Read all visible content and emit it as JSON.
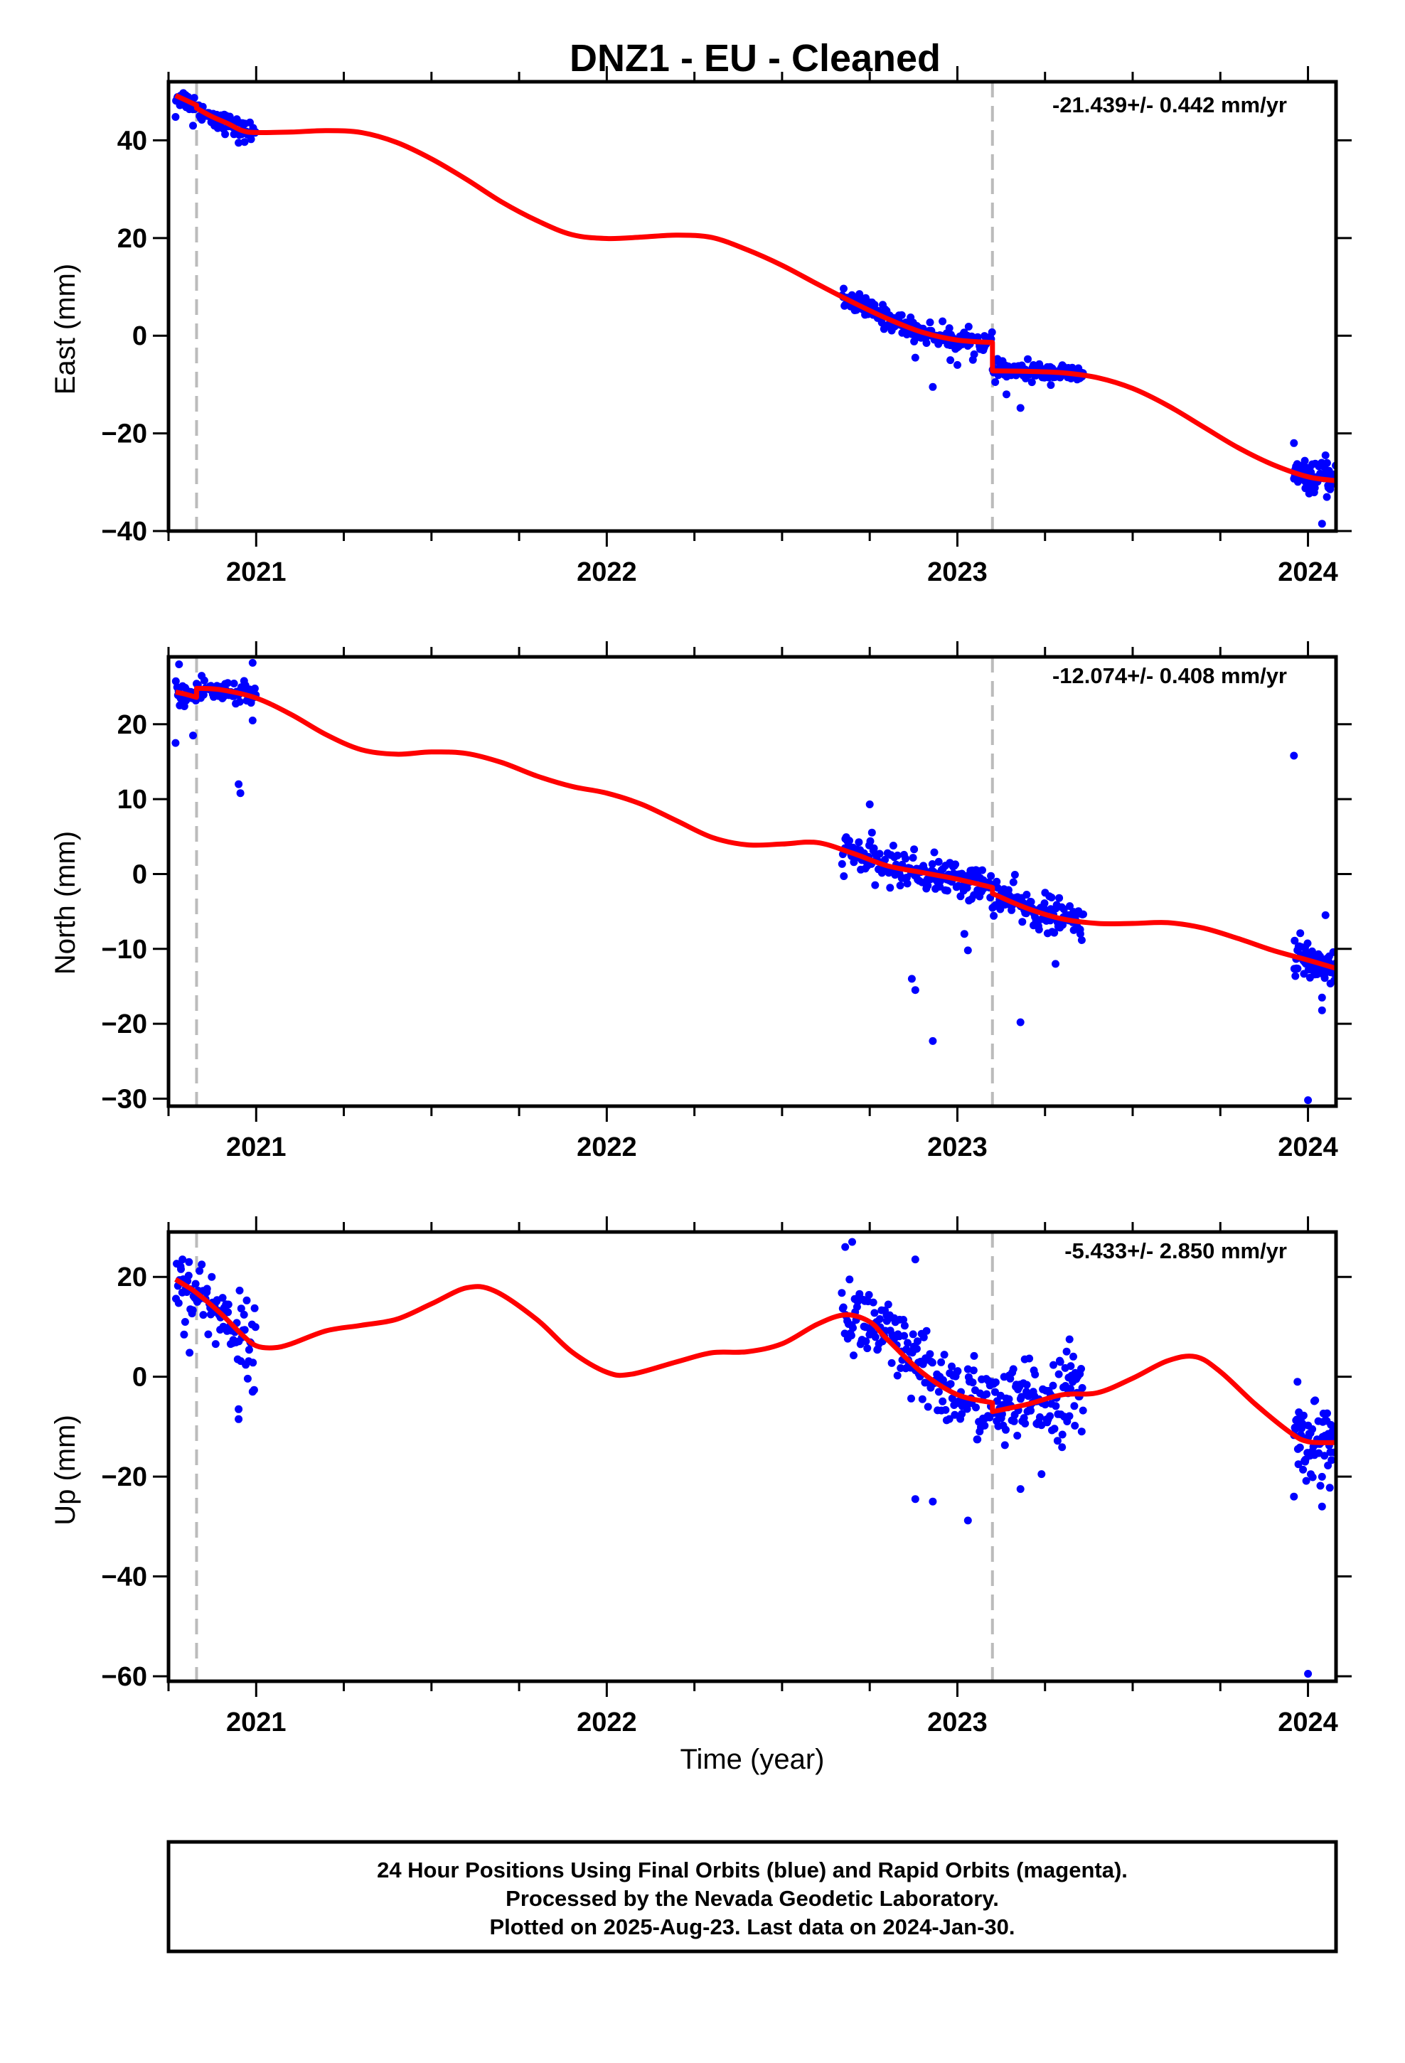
{
  "title": "DNZ1  - EU - Cleaned",
  "xlabel": "Time (year)",
  "footer": {
    "line1": "24 Hour Positions Using Final Orbits (blue) and Rapid Orbits (magenta).",
    "line2": "Processed by the Nevada Geodetic Laboratory.",
    "line3": "Plotted on 2025-Aug-23. Last data on 2024-Jan-30."
  },
  "colors": {
    "points": "#0000ff",
    "fit": "#ff0000",
    "steps": "#bbbbbb",
    "frame": "#000000"
  },
  "chart_data": [
    {
      "type": "scatter",
      "ylabel": "East (mm)",
      "rate_label": "-21.439+/- 0.442 mm/yr",
      "xlim": [
        2020.75,
        2024.08
      ],
      "ylim": [
        -40,
        52
      ],
      "xticks": [
        2021,
        2022,
        2023,
        2024
      ],
      "xtick_labels": [
        "2021",
        "2022",
        "2023",
        "2024"
      ],
      "yticks": [
        -40,
        -20,
        0,
        20,
        40
      ],
      "ytick_labels": [
        "−40",
        "−20",
        "0",
        "20",
        "40"
      ],
      "step_lines": [
        2020.83,
        2023.1
      ],
      "data_segments": [
        {
          "x0": 2020.77,
          "x1": 2021.0,
          "n": 85,
          "noise": 1.0,
          "outliers": [
            [
              2020.77,
              44.8
            ],
            [
              2020.79,
              48.0
            ],
            [
              2020.82,
              43.0
            ],
            [
              2020.95,
              39.5
            ]
          ]
        },
        {
          "x0": 2022.67,
          "x1": 2023.1,
          "n": 170,
          "noise": 1.1,
          "outliers": [
            [
              2022.93,
              -10.5
            ],
            [
              2022.88,
              -4.5
            ],
            [
              2022.98,
              -5.0
            ],
            [
              2023.0,
              -6.0
            ]
          ]
        },
        {
          "x0": 2023.1,
          "x1": 2023.36,
          "n": 110,
          "noise": 0.9,
          "outliers": [
            [
              2023.18,
              -14.8
            ],
            [
              2023.14,
              -12.0
            ]
          ]
        },
        {
          "x0": 2023.96,
          "x1": 2024.08,
          "n": 70,
          "noise": 1.4,
          "outliers": [
            [
              2023.96,
              -22.0
            ],
            [
              2024.04,
              -38.5
            ],
            [
              2024.05,
              -24.5
            ],
            [
              2023.98,
              -27.0
            ]
          ]
        }
      ],
      "fit": [
        [
          2020.77,
          49.2
        ],
        [
          2020.8,
          48.2
        ],
        [
          2020.83,
          47.2
        ],
        [
          2020.83,
          46.6
        ],
        [
          2020.87,
          45.0
        ],
        [
          2020.92,
          43.4
        ],
        [
          2020.96,
          42.0
        ],
        [
          2021.0,
          41.6
        ],
        [
          2021.1,
          41.7
        ],
        [
          2021.2,
          42.0
        ],
        [
          2021.3,
          41.6
        ],
        [
          2021.4,
          39.6
        ],
        [
          2021.5,
          36.2
        ],
        [
          2021.6,
          32.0
        ],
        [
          2021.7,
          27.4
        ],
        [
          2021.8,
          23.6
        ],
        [
          2021.9,
          20.7
        ],
        [
          2022.0,
          19.9
        ],
        [
          2022.1,
          20.2
        ],
        [
          2022.2,
          20.6
        ],
        [
          2022.3,
          20.1
        ],
        [
          2022.4,
          17.6
        ],
        [
          2022.5,
          14.4
        ],
        [
          2022.6,
          10.6
        ],
        [
          2022.7,
          6.9
        ],
        [
          2022.8,
          3.5
        ],
        [
          2022.9,
          0.7
        ],
        [
          2023.0,
          -0.9
        ],
        [
          2023.1,
          -1.4
        ],
        [
          2023.1,
          -7.2
        ],
        [
          2023.2,
          -7.3
        ],
        [
          2023.3,
          -7.6
        ],
        [
          2023.4,
          -8.6
        ],
        [
          2023.5,
          -10.8
        ],
        [
          2023.6,
          -14.3
        ],
        [
          2023.7,
          -18.6
        ],
        [
          2023.8,
          -22.9
        ],
        [
          2023.9,
          -26.4
        ],
        [
          2024.0,
          -28.9
        ],
        [
          2024.08,
          -29.7
        ]
      ]
    },
    {
      "type": "scatter",
      "ylabel": "North (mm)",
      "rate_label": "-12.074+/- 0.408 mm/yr",
      "xlim": [
        2020.75,
        2024.08
      ],
      "ylim": [
        -31,
        29
      ],
      "xticks": [
        2021,
        2022,
        2023,
        2024
      ],
      "xtick_labels": [
        "2021",
        "2022",
        "2023",
        "2024"
      ],
      "yticks": [
        -30,
        -20,
        -10,
        0,
        10,
        20
      ],
      "ytick_labels": [
        "−30",
        "−20",
        "−10",
        "0",
        "10",
        "20"
      ],
      "step_lines": [
        2020.83,
        2023.1
      ],
      "data_segments": [
        {
          "x0": 2020.77,
          "x1": 2021.0,
          "n": 85,
          "noise": 0.9,
          "outliers": [
            [
              2020.77,
              17.5
            ],
            [
              2020.82,
              18.5
            ],
            [
              2020.95,
              12.0
            ],
            [
              2020.955,
              10.8
            ],
            [
              2020.99,
              20.5
            ],
            [
              2020.99,
              28.2
            ],
            [
              2020.78,
              28.0
            ]
          ]
        },
        {
          "x0": 2022.67,
          "x1": 2023.1,
          "n": 170,
          "noise": 1.2,
          "outliers": [
            [
              2022.75,
              9.3
            ],
            [
              2022.87,
              -14.0
            ],
            [
              2022.88,
              -15.5
            ],
            [
              2022.93,
              -22.3
            ],
            [
              2023.03,
              -10.2
            ],
            [
              2023.02,
              -8.0
            ]
          ]
        },
        {
          "x0": 2023.1,
          "x1": 2023.36,
          "n": 110,
          "noise": 1.2,
          "outliers": [
            [
              2023.18,
              -19.8
            ],
            [
              2023.28,
              -12.0
            ]
          ]
        },
        {
          "x0": 2023.96,
          "x1": 2024.08,
          "n": 70,
          "noise": 1.3,
          "outliers": [
            [
              2023.96,
              15.8
            ],
            [
              2024.0,
              -30.2
            ],
            [
              2024.04,
              -18.2
            ],
            [
              2024.04,
              -16.5
            ],
            [
              2024.05,
              -5.5
            ]
          ]
        }
      ],
      "fit": [
        [
          2020.77,
          24.3
        ],
        [
          2020.8,
          24.0
        ],
        [
          2020.83,
          23.6
        ],
        [
          2020.83,
          24.8
        ],
        [
          2020.9,
          24.6
        ],
        [
          2021.0,
          23.5
        ],
        [
          2021.1,
          21.3
        ],
        [
          2021.2,
          18.6
        ],
        [
          2021.3,
          16.6
        ],
        [
          2021.4,
          16.0
        ],
        [
          2021.5,
          16.3
        ],
        [
          2021.6,
          16.1
        ],
        [
          2021.7,
          14.9
        ],
        [
          2021.8,
          13.1
        ],
        [
          2021.9,
          11.7
        ],
        [
          2022.0,
          10.8
        ],
        [
          2022.1,
          9.3
        ],
        [
          2022.2,
          7.1
        ],
        [
          2022.3,
          4.9
        ],
        [
          2022.4,
          3.9
        ],
        [
          2022.5,
          4.0
        ],
        [
          2022.6,
          4.2
        ],
        [
          2022.7,
          2.8
        ],
        [
          2022.8,
          1.1
        ],
        [
          2022.9,
          0.2
        ],
        [
          2023.0,
          -0.7
        ],
        [
          2023.1,
          -1.8
        ],
        [
          2023.1,
          -2.6
        ],
        [
          2023.2,
          -4.6
        ],
        [
          2023.3,
          -6.0
        ],
        [
          2023.4,
          -6.6
        ],
        [
          2023.5,
          -6.6
        ],
        [
          2023.6,
          -6.5
        ],
        [
          2023.7,
          -7.2
        ],
        [
          2023.8,
          -8.6
        ],
        [
          2023.9,
          -10.2
        ],
        [
          2024.0,
          -11.5
        ],
        [
          2024.08,
          -12.6
        ]
      ]
    },
    {
      "type": "scatter",
      "ylabel": "Up (mm)",
      "rate_label": "-5.433+/- 2.850 mm/yr",
      "xlim": [
        2020.75,
        2024.08
      ],
      "ylim": [
        -61,
        29
      ],
      "xticks": [
        2021,
        2022,
        2023,
        2024
      ],
      "xtick_labels": [
        "2021",
        "2022",
        "2023",
        "2024"
      ],
      "yticks": [
        -60,
        -40,
        -20,
        0,
        20
      ],
      "ytick_labels": [
        "−60",
        "−40",
        "−20",
        "0",
        "20"
      ],
      "step_lines": [
        2020.83,
        2023.1
      ],
      "data_segments": [
        {
          "x0": 2020.77,
          "x1": 2021.0,
          "n": 90,
          "noise": 3.5,
          "outliers": [
            [
              2020.81,
              4.8
            ],
            [
              2020.95,
              -8.5
            ],
            [
              2020.95,
              -6.5
            ],
            [
              2020.99,
              -3.0
            ],
            [
              2020.79,
              23.5
            ]
          ]
        },
        {
          "x0": 2022.67,
          "x1": 2023.1,
          "n": 180,
          "noise": 4.0,
          "outliers": [
            [
              2022.68,
              26.0
            ],
            [
              2022.7,
              27.0
            ],
            [
              2022.88,
              23.5
            ],
            [
              2022.88,
              -24.5
            ],
            [
              2022.93,
              -25.0
            ],
            [
              2023.03,
              -28.8
            ]
          ]
        },
        {
          "x0": 2023.1,
          "x1": 2023.36,
          "n": 120,
          "noise": 4.0,
          "outliers": [
            [
              2023.18,
              -22.5
            ],
            [
              2023.24,
              -19.5
            ],
            [
              2023.32,
              7.5
            ]
          ]
        },
        {
          "x0": 2023.96,
          "x1": 2024.08,
          "n": 70,
          "noise": 3.8,
          "outliers": [
            [
              2023.96,
              -24.0
            ],
            [
              2024.0,
              -59.5
            ],
            [
              2024.04,
              -26.0
            ],
            [
              2023.97,
              -1.0
            ]
          ]
        }
      ],
      "fit": [
        [
          2020.77,
          19.5
        ],
        [
          2020.8,
          18.2
        ],
        [
          2020.83,
          16.8
        ],
        [
          2020.9,
          12.6
        ],
        [
          2020.96,
          8.4
        ],
        [
          2021.0,
          6.2
        ],
        [
          2021.05,
          5.8
        ],
        [
          2021.1,
          6.6
        ],
        [
          2021.2,
          9.2
        ],
        [
          2021.3,
          10.3
        ],
        [
          2021.4,
          11.5
        ],
        [
          2021.5,
          14.6
        ],
        [
          2021.6,
          17.8
        ],
        [
          2021.68,
          17.2
        ],
        [
          2021.8,
          11.5
        ],
        [
          2021.9,
          5.0
        ],
        [
          2022.0,
          0.9
        ],
        [
          2022.07,
          0.5
        ],
        [
          2022.2,
          3.0
        ],
        [
          2022.3,
          4.8
        ],
        [
          2022.4,
          5.0
        ],
        [
          2022.5,
          6.6
        ],
        [
          2022.6,
          10.5
        ],
        [
          2022.68,
          12.4
        ],
        [
          2022.75,
          11.0
        ],
        [
          2022.8,
          7.5
        ],
        [
          2022.9,
          0.8
        ],
        [
          2023.0,
          -3.6
        ],
        [
          2023.1,
          -5.2
        ],
        [
          2023.1,
          -7.0
        ],
        [
          2023.2,
          -5.5
        ],
        [
          2023.3,
          -3.6
        ],
        [
          2023.4,
          -3.2
        ],
        [
          2023.5,
          -0.3
        ],
        [
          2023.6,
          3.2
        ],
        [
          2023.68,
          4.0
        ],
        [
          2023.75,
          1.0
        ],
        [
          2023.85,
          -5.5
        ],
        [
          2023.95,
          -11.2
        ],
        [
          2024.0,
          -13.0
        ],
        [
          2024.08,
          -13.2
        ]
      ]
    }
  ]
}
